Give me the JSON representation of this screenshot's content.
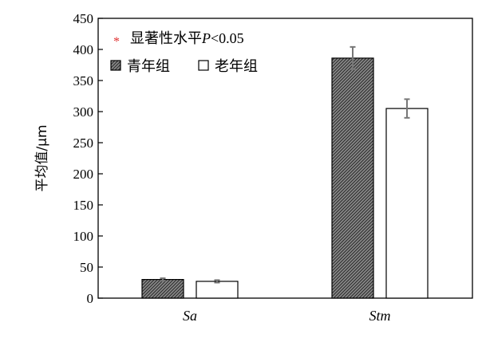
{
  "chart_data": {
    "type": "bar",
    "categories": [
      "Sa",
      "Stm"
    ],
    "ylabel": "平均值/μm",
    "ylim": [
      0,
      450
    ],
    "yticks": [
      0,
      50,
      100,
      150,
      200,
      250,
      300,
      350,
      400,
      450
    ],
    "grid": false,
    "legend_position": "top-left",
    "annotation": {
      "marker": "*",
      "text": "显著性水平",
      "p_symbol": "P",
      "p_condition": "<0.05",
      "marker_color": "#e03030"
    },
    "series": [
      {
        "name": "青年组",
        "values": [
          30,
          386
        ],
        "errors": [
          2,
          18
        ],
        "fill": "hatched",
        "color": "#555555"
      },
      {
        "name": "老年组",
        "values": [
          27,
          305
        ],
        "errors": [
          2,
          15
        ],
        "fill": "white",
        "color": "#ffffff"
      }
    ]
  }
}
